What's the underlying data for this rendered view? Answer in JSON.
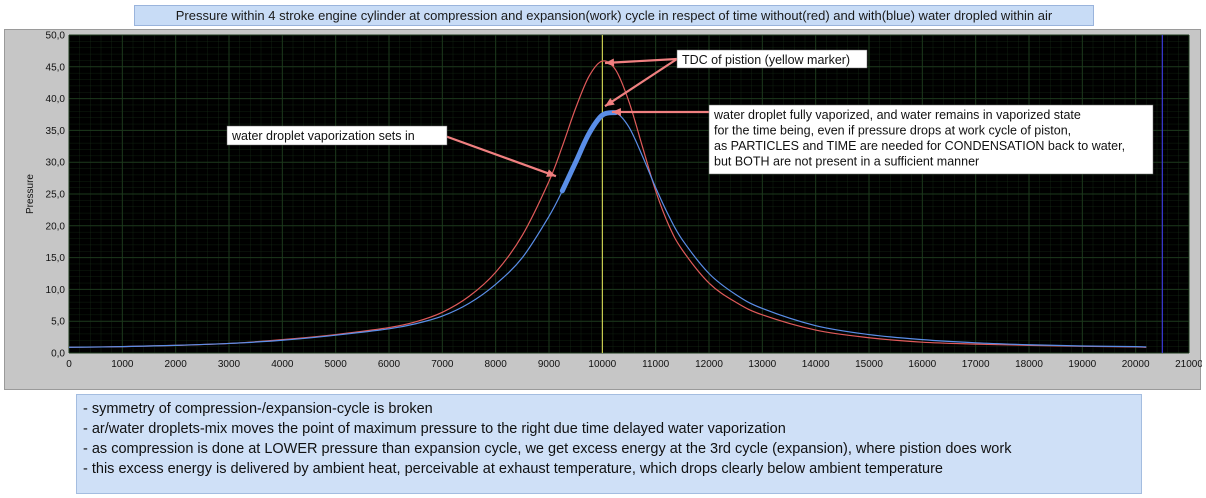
{
  "title": "Pressure within 4 stroke engine cylinder at compression and expansion(work) cycle in respect of time without(red) and with(blue) water dropled within air",
  "notes": [
    "- symmetry of compression-/expansion-cycle is broken",
    "- ar/water droplets-mix moves the point of maximum pressure to the right due time delayed water vaporization",
    "- as compression is done at LOWER pressure than expansion cycle, we get excess energy at the 3rd cycle (expansion), where pistion does work",
    "- this excess energy is delivered by ambient heat, perceivable at exhaust temperature, which drops clearly below ambient temperature"
  ],
  "annotations": [
    {
      "id": "tdc",
      "lines": [
        "TDC of pistion (yellow marker)"
      ]
    },
    {
      "id": "vap-start",
      "lines": [
        "water droplet vaporization sets in"
      ]
    },
    {
      "id": "vap-full",
      "lines": [
        "water droplet fully vaporized, and water remains in vaporized state",
        "for the time being, even if pressure drops at work cycle of piston,",
        "as PARTICLES and TIME are needed for CONDENSATION back to water,",
        "but BOTH are not present in a sufficient manner"
      ]
    }
  ],
  "colors": {
    "plot_bg": "#000000",
    "grid": "#1d3a1d",
    "red_series": "#e05a5a",
    "blue_series": "#5a8ee8",
    "tdc_marker": "#e8e85a",
    "right_cursor": "#3a3ad8",
    "arrow": "#f08080"
  },
  "chart_data": {
    "type": "line",
    "title": "Pressure within 4 stroke engine cylinder at compression and expansion(work) cycle in respect of time without(red) and with(blue) water dropled within air",
    "xlabel": "",
    "ylabel": "Pressure",
    "xlim": [
      0,
      21000
    ],
    "ylim": [
      0,
      50
    ],
    "x_ticks": [
      0,
      1000,
      2000,
      3000,
      4000,
      5000,
      6000,
      7000,
      8000,
      9000,
      10000,
      11000,
      12000,
      13000,
      14000,
      15000,
      16000,
      17000,
      18000,
      19000,
      20000,
      21000
    ],
    "y_ticks": [
      "0,0",
      "5,0",
      "10,0",
      "15,0",
      "20,0",
      "25,0",
      "30,0",
      "35,0",
      "40,0",
      "45,0",
      "50,0"
    ],
    "grid": true,
    "tdc_marker_x": 10000,
    "right_cursor_x": 20500,
    "series": [
      {
        "color": "red",
        "x": [
          0,
          1000,
          2000,
          3000,
          4000,
          5000,
          6000,
          6500,
          7000,
          7500,
          8000,
          8500,
          9000,
          9250,
          9500,
          9750,
          10000,
          10250,
          10500,
          10750,
          11000,
          11250,
          11500,
          12000,
          12500,
          13000,
          14000,
          15000,
          16000,
          17000,
          18000,
          19000,
          20000,
          20200
        ],
        "y": [
          0.9,
          1.0,
          1.2,
          1.5,
          2.1,
          2.9,
          4.0,
          4.9,
          6.4,
          8.9,
          12.7,
          18.5,
          27.0,
          32.5,
          38.5,
          43.5,
          45.9,
          44.5,
          39.5,
          32.5,
          25.5,
          20.0,
          16.2,
          11.0,
          8.0,
          6.0,
          3.6,
          2.4,
          1.7,
          1.4,
          1.2,
          1.05,
          0.95,
          0.9
        ]
      },
      {
        "color": "blue",
        "x": [
          0,
          1000,
          2000,
          3000,
          4000,
          5000,
          6000,
          6500,
          7000,
          7500,
          8000,
          8500,
          9000,
          9250,
          9500,
          9750,
          10000,
          10250,
          10500,
          10750,
          11000,
          11250,
          11500,
          12000,
          12500,
          13000,
          14000,
          15000,
          16000,
          17000,
          18000,
          19000,
          20000,
          20200
        ],
        "y": [
          0.9,
          1.0,
          1.2,
          1.5,
          2.0,
          2.8,
          3.8,
          4.6,
          5.8,
          7.8,
          10.8,
          15.0,
          21.5,
          25.5,
          30.0,
          34.5,
          37.4,
          37.8,
          35.5,
          31.0,
          26.0,
          21.5,
          17.8,
          12.5,
          9.2,
          7.0,
          4.3,
          2.9,
          2.1,
          1.6,
          1.3,
          1.1,
          1.0,
          0.95
        ]
      }
    ]
  }
}
